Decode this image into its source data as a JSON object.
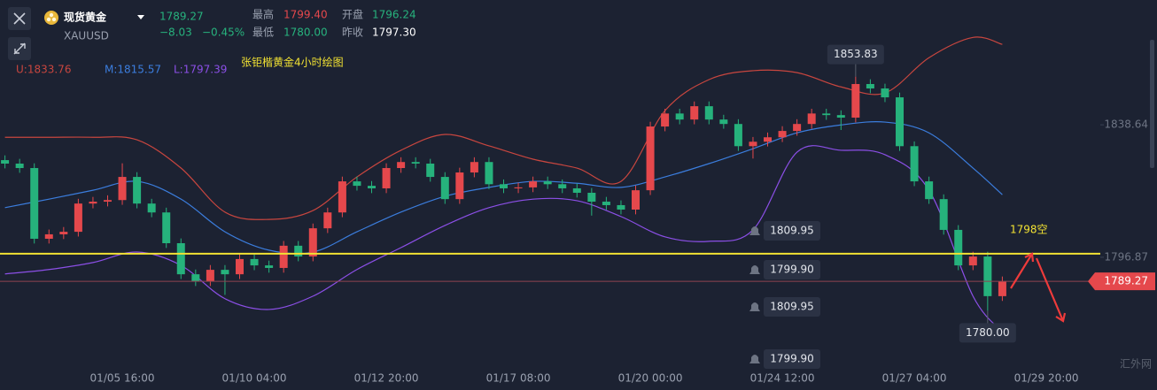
{
  "header": {
    "name": "现货黄金",
    "symbol": "XAUUSD",
    "price": "1789.27",
    "change": "−8.03",
    "change_pct": "−0.45%",
    "high_label": "最高",
    "high": "1799.40",
    "open_label": "开盘",
    "open": "1796.24",
    "low_label": "最低",
    "low": "1780.00",
    "prev_label": "昨收",
    "prev": "1797.30"
  },
  "chart_data": {
    "type": "candlestick",
    "annotation": "张钜楷黄金4小时绘图",
    "watermark": "汇外网",
    "up_color": "#e5484c",
    "down_color": "#26b27c",
    "categories": [
      null,
      null,
      null,
      null,
      null,
      null,
      null,
      null,
      "01/05 16:00",
      null,
      null,
      null,
      null,
      null,
      null,
      null,
      null,
      "01/10 04:00",
      null,
      null,
      null,
      null,
      null,
      null,
      null,
      null,
      "01/12 20:00",
      null,
      null,
      null,
      null,
      null,
      null,
      null,
      null,
      "01/17 08:00",
      null,
      null,
      null,
      null,
      null,
      null,
      null,
      null,
      "01/20 00:00",
      null,
      null,
      null,
      null,
      null,
      null,
      null,
      null,
      "01/24 12:00",
      null,
      null,
      null,
      null,
      null,
      null,
      null,
      null,
      "01/27 04:00",
      null,
      null,
      null,
      null,
      null,
      null,
      null,
      null,
      "01/29 20:00"
    ],
    "open": [
      1827.5,
      1826.4,
      1825.0,
      1802.7,
      1804.1,
      1804.9,
      1813.8,
      1814.4,
      1814.9,
      1822.2,
      1813.8,
      1811.0,
      1801.3,
      1791.5,
      1789.3,
      1792.9,
      1791.5,
      1796.3,
      1794.3,
      1793.5,
      1800.5,
      1797.1,
      1806.0,
      1811.0,
      1820.8,
      1819.4,
      1818.6,
      1825.0,
      1826.9,
      1826.4,
      1822.2,
      1815.2,
      1823.6,
      1826.9,
      1819.9,
      1818.6,
      1818.9,
      1820.8,
      1819.9,
      1818.6,
      1817.2,
      1814.4,
      1813.3,
      1811.9,
      1818.0,
      1838.1,
      1842.2,
      1840.3,
      1844.5,
      1840.3,
      1838.9,
      1831.9,
      1833.3,
      1834.7,
      1836.7,
      1838.9,
      1842.2,
      1841.7,
      1840.9,
      1851.5,
      1850.1,
      1847.3,
      1831.9,
      1820.8,
      1815.2,
      1805.5,
      1794.3,
      1797.1,
      1784.6,
      null,
      null,
      null
    ],
    "high": [
      1829.0,
      1827.9,
      1826.5,
      1805.6,
      1806.4,
      1815.3,
      1815.9,
      1816.4,
      1826.5,
      1823.7,
      1815.3,
      1812.5,
      1802.8,
      1793.0,
      1794.4,
      1794.4,
      1797.8,
      1797.8,
      1795.8,
      1802.0,
      1802.0,
      1807.5,
      1812.5,
      1822.3,
      1822.3,
      1820.9,
      1826.5,
      1828.4,
      1828.4,
      1827.9,
      1823.7,
      1825.1,
      1828.4,
      1828.4,
      1821.4,
      1820.4,
      1822.3,
      1822.3,
      1821.4,
      1820.1,
      1818.7,
      1815.9,
      1814.8,
      1819.5,
      1839.6,
      1843.7,
      1843.7,
      1846.0,
      1846.0,
      1841.8,
      1840.4,
      1834.8,
      1836.2,
      1838.2,
      1840.4,
      1843.7,
      1843.7,
      1843.2,
      1853.83,
      1853.0,
      1851.6,
      1848.8,
      1833.4,
      1822.3,
      1816.7,
      1807.0,
      1798.6,
      1798.6,
      1790.8,
      null,
      null,
      null
    ],
    "low": [
      1824.9,
      1823.5,
      1801.2,
      1801.2,
      1802.6,
      1803.4,
      1812.3,
      1812.9,
      1813.4,
      1812.3,
      1809.5,
      1799.8,
      1790.0,
      1787.8,
      1787.8,
      1785.0,
      1790.0,
      1792.8,
      1792.0,
      1792.0,
      1795.6,
      1795.6,
      1804.5,
      1809.5,
      1817.9,
      1817.1,
      1817.1,
      1823.5,
      1824.9,
      1820.7,
      1813.7,
      1813.7,
      1822.1,
      1818.4,
      1817.1,
      1817.1,
      1817.4,
      1818.4,
      1817.1,
      1815.7,
      1810.0,
      1811.8,
      1810.4,
      1810.4,
      1816.5,
      1836.6,
      1838.8,
      1838.8,
      1838.8,
      1837.4,
      1830.4,
      1828.0,
      1831.8,
      1833.2,
      1835.2,
      1837.4,
      1840.2,
      1837.0,
      1839.4,
      1848.6,
      1845.8,
      1830.4,
      1819.3,
      1813.7,
      1804.0,
      1792.8,
      1792.8,
      1780.0,
      1783.1,
      null,
      null,
      null
    ],
    "close": [
      1826.4,
      1825.0,
      1802.7,
      1804.1,
      1804.9,
      1813.8,
      1814.4,
      1814.9,
      1822.2,
      1813.8,
      1811.0,
      1801.3,
      1791.5,
      1789.3,
      1792.9,
      1791.5,
      1796.3,
      1794.3,
      1793.5,
      1800.5,
      1797.1,
      1806.0,
      1811.0,
      1820.8,
      1819.4,
      1818.6,
      1825.0,
      1826.9,
      1826.4,
      1822.2,
      1815.2,
      1823.6,
      1826.9,
      1819.9,
      1818.6,
      1818.9,
      1820.8,
      1819.9,
      1818.6,
      1817.2,
      1814.4,
      1813.3,
      1811.9,
      1818.0,
      1838.1,
      1842.2,
      1840.3,
      1844.5,
      1840.3,
      1838.9,
      1831.9,
      1833.3,
      1834.7,
      1836.7,
      1838.9,
      1842.2,
      1841.7,
      1840.9,
      1851.5,
      1850.1,
      1847.3,
      1831.9,
      1820.8,
      1815.2,
      1805.5,
      1794.3,
      1797.1,
      1784.6,
      1789.27,
      null,
      null,
      null
    ],
    "extreme_labels": {
      "high": "1853.83",
      "low": "1780.00"
    },
    "bands": [
      {
        "legend": "U:1833.76",
        "color": "#c8463f",
        "x": [
          0,
          3,
          6,
          9,
          12,
          15,
          18,
          21,
          24,
          27,
          30,
          33,
          36,
          39,
          42,
          45,
          48,
          51,
          54,
          57,
          60,
          63,
          66,
          68
        ],
        "values": [
          1834.7,
          1834.7,
          1834.7,
          1833.9,
          1825.0,
          1811.1,
          1808.8,
          1811.6,
          1822.2,
          1830.6,
          1835.6,
          1832.0,
          1827.8,
          1825.0,
          1820.8,
          1843.1,
          1852.9,
          1855.7,
          1855.1,
          1850.6,
          1848.7,
          1859.8,
          1866.2,
          1864.0
        ]
      },
      {
        "legend": "M:1815.57",
        "color": "#3b7ddd",
        "x": [
          0,
          3,
          6,
          9,
          12,
          15,
          18,
          21,
          24,
          27,
          30,
          33,
          36,
          39,
          42,
          45,
          48,
          51,
          54,
          57,
          60,
          63,
          66,
          68
        ],
        "values": [
          1812.5,
          1815.2,
          1818.0,
          1820.8,
          1815.2,
          1804.9,
          1799.1,
          1798.5,
          1804.9,
          1811.1,
          1816.1,
          1818.9,
          1820.8,
          1820.2,
          1818.9,
          1822.2,
          1826.4,
          1831.1,
          1836.1,
          1838.6,
          1839.5,
          1836.1,
          1825.0,
          1816.6
        ]
      },
      {
        "legend": "L:1797.39",
        "color": "#8b4fe6",
        "x": [
          0,
          3,
          6,
          9,
          12,
          15,
          18,
          21,
          24,
          27,
          30,
          33,
          36,
          39,
          42,
          45,
          48,
          51,
          54,
          57,
          60,
          63,
          66,
          68
        ],
        "values": [
          1791.6,
          1793.0,
          1795.2,
          1798.5,
          1794.3,
          1783.8,
          1780.4,
          1784.6,
          1793.0,
          1799.9,
          1806.9,
          1812.5,
          1815.2,
          1814.7,
          1809.7,
          1803.3,
          1801.9,
          1805.5,
          1830.0,
          1830.6,
          1829.2,
          1818.0,
          1784.6,
          1773.4
        ]
      }
    ],
    "level": 1798,
    "level_label": "1798空",
    "level_color": "#f2e233",
    "alerts": [
      "1809.95",
      "1799.90",
      "1809.95",
      "1799.90"
    ],
    "ylim": [
      1755,
      1878
    ],
    "yticks": [
      1838.64,
      1796.87
    ],
    "grid": false
  }
}
